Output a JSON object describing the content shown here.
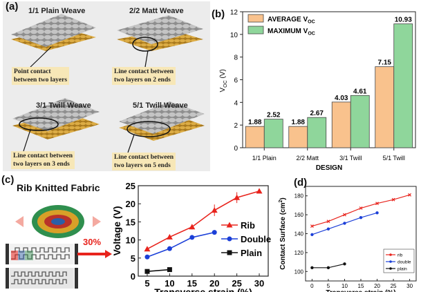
{
  "panel_labels": {
    "a": "(a)",
    "b": "(b)",
    "c": "(c)",
    "d": "(d)"
  },
  "panel_a": {
    "weaves": [
      {
        "title": "1/1 Plain Weave",
        "callout": "Point contact\nbetween two layers"
      },
      {
        "title": "2/2 Matt Weave",
        "callout": "Line contact between\ntwo layers on 2 ends"
      },
      {
        "title": "3/1 Twill Weave",
        "callout": "Line contact between\ntwo layers on 3 ends"
      },
      {
        "title": "5/1 Twill Weave",
        "callout": "Line contact between\ntwo layers on 5 ends"
      }
    ],
    "colors": {
      "top_yarn": "#9a9a9a",
      "bottom_yarn": "#c9962d",
      "callout_bg": "#f7e7b7"
    }
  },
  "panel_c_left": {
    "title": "Rib Knitted Fabric",
    "strain_label": "30%"
  },
  "colors": {
    "bar_avg": "#f9c28d",
    "bar_max": "#8fd69b",
    "rib": "#e8231c",
    "double": "#1b3fd8",
    "plain": "#111111"
  },
  "chart_data": [
    {
      "id": "b",
      "type": "bar",
      "categories": [
        "1/1 Plain",
        "2/2 Matt",
        "3/1 Twill",
        "5/1 Twill"
      ],
      "series": [
        {
          "name": "AVERAGE V",
          "name_sub": "OC",
          "values": [
            1.88,
            1.88,
            4.03,
            7.15
          ],
          "labels": [
            "1.88",
            "1.88",
            "4.03",
            "7.15"
          ]
        },
        {
          "name": "MAXIMUM V",
          "name_sub": "OC",
          "values": [
            2.52,
            2.67,
            4.61,
            10.93
          ],
          "labels": [
            "2.52",
            "2.67",
            "4.61",
            "10.93"
          ]
        }
      ],
      "xlabel": "DESIGN",
      "ylabel": "V",
      "ylabel_sub": "OC",
      "ylabel_unit": "(V)",
      "ylim": [
        0,
        12
      ],
      "yticks": [
        "0",
        "2",
        "4",
        "6",
        "8",
        "10",
        "12"
      ],
      "legend": "top-left"
    },
    {
      "id": "c",
      "type": "line",
      "series": [
        {
          "name": "Rib",
          "x": [
            5,
            10,
            15,
            20,
            25,
            30
          ],
          "y": [
            7.5,
            10.8,
            13.6,
            18.2,
            21.7,
            23.5
          ],
          "err": [
            0.4,
            0.6,
            0.7,
            1.6,
            1.5,
            0.6
          ]
        },
        {
          "name": "Double",
          "x": [
            5,
            10,
            15,
            20
          ],
          "y": [
            5.3,
            7.6,
            10.7,
            12.1
          ],
          "err": [
            0.3,
            0.5,
            0.4,
            0.4
          ]
        },
        {
          "name": "Plain",
          "x": [
            5,
            10
          ],
          "y": [
            1.3,
            1.8
          ],
          "err": [
            0.2,
            0.3
          ]
        }
      ],
      "xlabel": "Transverse strain (%)",
      "ylabel": "Voltage (V)",
      "xlim": [
        3,
        32
      ],
      "ylim": [
        0,
        25
      ],
      "xticks": [
        "5",
        "10",
        "15",
        "20",
        "25",
        "30"
      ],
      "yticks": [
        "0",
        "5",
        "10",
        "15",
        "20",
        "25"
      ],
      "legend": "right"
    },
    {
      "id": "d",
      "type": "line",
      "series": [
        {
          "name": "rib",
          "x": [
            0,
            5,
            10,
            15,
            20,
            25,
            30
          ],
          "y": [
            148,
            153,
            160,
            167,
            172,
            176,
            181
          ]
        },
        {
          "name": "double",
          "x": [
            0,
            5,
            10,
            15,
            20
          ],
          "y": [
            139,
            145,
            151,
            157,
            162
          ]
        },
        {
          "name": "plain",
          "x": [
            0,
            5,
            10
          ],
          "y": [
            104,
            104,
            108
          ]
        }
      ],
      "xlabel": "Transverse strain (%)",
      "ylabel": "Contact Surface (cm",
      "ylabel_sup": "2",
      "ylabel_tail": ")",
      "xlim": [
        -2,
        32
      ],
      "ylim": [
        90,
        190
      ],
      "xticks": [
        "0",
        "5",
        "10",
        "15",
        "20",
        "25",
        "30"
      ],
      "yticks": [
        "100",
        "120",
        "140",
        "160",
        "180"
      ],
      "legend": "bottom-right"
    }
  ]
}
